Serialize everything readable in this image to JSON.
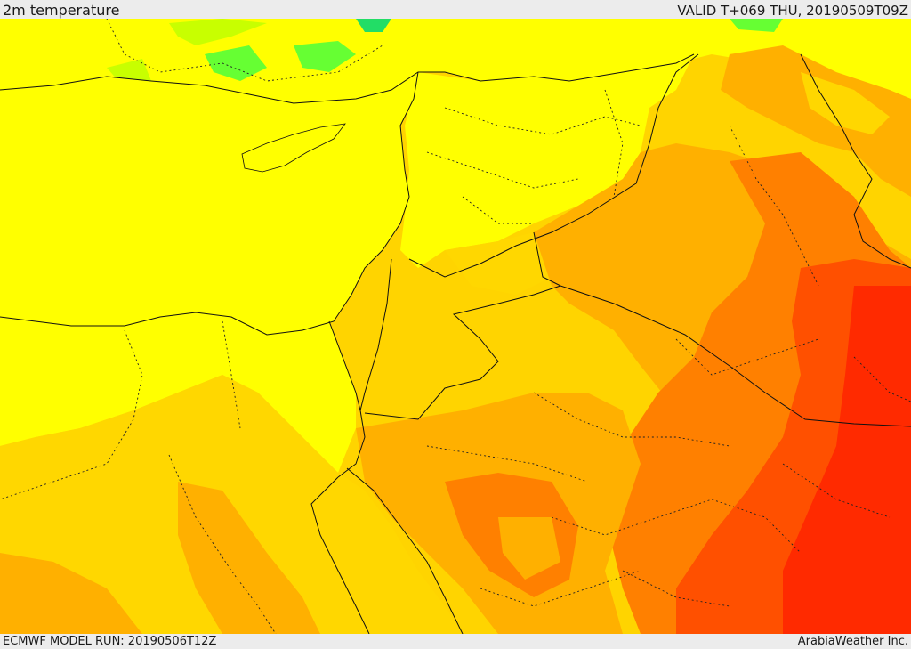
{
  "header": {
    "title": "2m temperature",
    "valid": "VALID T+069 THU, 20190509T09Z"
  },
  "footer": {
    "model_run": "ECMWF MODEL RUN: 20190506T12Z",
    "credit": "ArabiaWeather Inc."
  },
  "colors": {
    "sea_and_cool_land": "#ffff00",
    "warm": "#ffd700",
    "warmer": "#ffb000",
    "hot": "#ff8000",
    "very_hot": "#ff5000",
    "hottest": "#ff2a00",
    "mild": "#c8ff00",
    "cool": "#66ff33",
    "coolest": "#22dd66",
    "border": "#111111"
  }
}
